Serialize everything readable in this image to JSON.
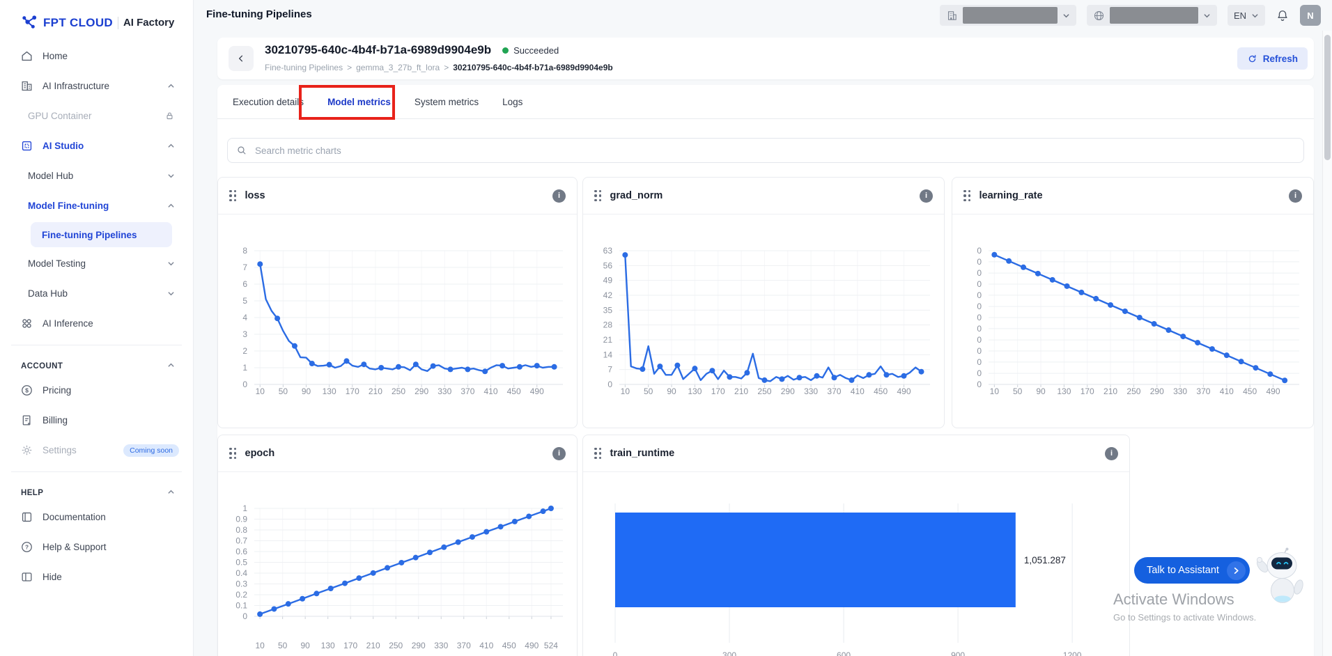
{
  "brand": {
    "name": "FPT CLOUD",
    "product": "AI Factory"
  },
  "header": {
    "title": "Fine-tuning Pipelines",
    "language": "EN",
    "avatar_initial": "N"
  },
  "sidebar": {
    "items": [
      {
        "label": "Home"
      },
      {
        "label": "AI Infrastructure"
      },
      {
        "label": "GPU Container"
      },
      {
        "label": "AI Studio"
      },
      {
        "label": "Model Hub"
      },
      {
        "label": "Model Fine-tuning"
      },
      {
        "label": "Fine-tuning Pipelines"
      },
      {
        "label": "Model Testing"
      },
      {
        "label": "Data Hub"
      },
      {
        "label": "AI Inference"
      }
    ],
    "sections": {
      "account": "ACCOUNT",
      "help": "HELP"
    },
    "account_items": [
      {
        "label": "Pricing"
      },
      {
        "label": "Billing"
      },
      {
        "label": "Settings",
        "badge": "Coming soon"
      }
    ],
    "help_items": [
      {
        "label": "Documentation"
      },
      {
        "label": "Help & Support"
      },
      {
        "label": "Hide"
      }
    ]
  },
  "pipeline": {
    "id": "30210795-640c-4b4f-b71a-6989d9904e9b",
    "status": "Succeeded",
    "breadcrumb": [
      "Fine-tuning Pipelines",
      "gemma_3_27b_ft_lora",
      "30210795-640c-4b4f-b71a-6989d9904e9b"
    ],
    "separator": ">",
    "refresh_label": "Refresh"
  },
  "tabs": {
    "items": [
      {
        "label": "Execution details"
      },
      {
        "label": "Model metrics"
      },
      {
        "label": "System metrics"
      },
      {
        "label": "Logs"
      }
    ],
    "active": "Model metrics"
  },
  "search": {
    "placeholder": "Search metric charts"
  },
  "assistant": {
    "label": "Talk to Assistant"
  },
  "watermark": {
    "line1": "Activate Windows",
    "line2": "Go to Settings to activate Windows."
  },
  "colors": {
    "accent": "#2145d6",
    "chart_line": "#2b6ce4",
    "bar_fill": "#1f6bf5",
    "status_green": "#21a453",
    "annotation_red": "#e8221a"
  },
  "chart_data": [
    {
      "title": "loss",
      "type": "line",
      "x": [
        10,
        20,
        30,
        40,
        50,
        60,
        70,
        80,
        90,
        100,
        110,
        120,
        130,
        140,
        150,
        160,
        170,
        180,
        190,
        200,
        210,
        220,
        230,
        240,
        250,
        260,
        270,
        280,
        290,
        300,
        310,
        320,
        330,
        340,
        350,
        360,
        370,
        380,
        390,
        400,
        410,
        420,
        430,
        440,
        450,
        460,
        470,
        480,
        490,
        500,
        510,
        520
      ],
      "values": [
        7.2,
        5.1,
        4.4,
        3.95,
        3.2,
        2.6,
        2.3,
        1.62,
        1.6,
        1.25,
        1.1,
        1.12,
        1.18,
        1.0,
        1.1,
        1.4,
        1.12,
        1.05,
        1.2,
        0.95,
        0.9,
        1.0,
        0.95,
        0.9,
        1.05,
        1.03,
        0.85,
        1.2,
        0.9,
        0.8,
        1.1,
        1.15,
        0.95,
        0.9,
        0.95,
        1.0,
        0.9,
        0.95,
        0.85,
        0.78,
        1.0,
        1.15,
        1.12,
        0.95,
        1.0,
        1.05,
        1.15,
        1.05,
        1.12,
        1.0,
        1.05,
        1.05
      ],
      "x_ticks": [
        10,
        50,
        90,
        130,
        170,
        210,
        250,
        290,
        330,
        370,
        410,
        450,
        490
      ],
      "y_ticks": [
        0,
        1,
        2,
        3,
        4,
        5,
        6,
        7,
        8
      ],
      "y_labels": [
        "0",
        "1",
        "2",
        "3",
        "4",
        "5",
        "6",
        "7",
        "8"
      ],
      "xlim": [
        0,
        535
      ],
      "ylim": [
        0,
        8
      ],
      "marker_every": 3,
      "grid": true
    },
    {
      "title": "grad_norm",
      "type": "line",
      "x": [
        10,
        20,
        30,
        40,
        50,
        60,
        70,
        80,
        90,
        100,
        110,
        120,
        130,
        140,
        150,
        160,
        170,
        180,
        190,
        200,
        210,
        220,
        230,
        240,
        250,
        260,
        270,
        280,
        290,
        300,
        310,
        320,
        330,
        340,
        350,
        360,
        370,
        380,
        390,
        400,
        410,
        420,
        430,
        440,
        450,
        460,
        470,
        480,
        490,
        500,
        510,
        520
      ],
      "values": [
        61,
        8.5,
        7.5,
        7.2,
        18,
        5,
        8.5,
        4.5,
        4.5,
        9,
        2.5,
        5,
        7.5,
        2,
        5,
        6.5,
        2.5,
        6.5,
        3.5,
        3.5,
        2.8,
        5.5,
        14.5,
        3,
        2,
        1.5,
        3.5,
        2.5,
        4,
        2.2,
        3.2,
        3.5,
        2,
        4,
        3.2,
        8,
        3.2,
        4.5,
        3,
        2,
        4.2,
        3,
        4.5,
        5,
        8.5,
        4.5,
        5,
        3.5,
        4,
        5.5,
        8,
        6
      ],
      "x_ticks": [
        10,
        50,
        90,
        130,
        170,
        210,
        250,
        290,
        330,
        370,
        410,
        450,
        490
      ],
      "y_ticks": [
        0,
        7,
        14,
        21,
        28,
        35,
        42,
        49,
        56,
        63
      ],
      "y_labels": [
        "0",
        "7",
        "14",
        "21",
        "28",
        "35",
        "42",
        "49",
        "56",
        "63"
      ],
      "xlim": [
        0,
        535
      ],
      "ylim": [
        0,
        63
      ],
      "marker_every": 3,
      "grid": true
    },
    {
      "title": "learning_rate",
      "type": "line",
      "x": [
        10,
        35,
        60,
        85,
        110,
        135,
        160,
        185,
        210,
        235,
        260,
        285,
        310,
        335,
        360,
        385,
        410,
        435,
        460,
        485,
        510
      ],
      "values": [
        0.97,
        0.923,
        0.876,
        0.829,
        0.782,
        0.735,
        0.688,
        0.641,
        0.594,
        0.547,
        0.5,
        0.453,
        0.406,
        0.359,
        0.312,
        0.265,
        0.218,
        0.171,
        0.124,
        0.077,
        0.03
      ],
      "x_ticks": [
        10,
        50,
        90,
        130,
        170,
        210,
        250,
        290,
        330,
        370,
        410,
        450,
        490
      ],
      "y_ticks": [
        0,
        0.083,
        0.167,
        0.25,
        0.333,
        0.417,
        0.5,
        0.583,
        0.667,
        0.75,
        0.833,
        0.917,
        1
      ],
      "y_labels": [
        "0",
        "0",
        "0",
        "0",
        "0",
        "0",
        "0",
        "0",
        "0",
        "0",
        "0",
        "0",
        "0"
      ],
      "xlim": [
        0,
        535
      ],
      "ylim": [
        0,
        1
      ],
      "marker_every": 1,
      "grid": true,
      "note": "linear decay; y tick labels all render as 0"
    },
    {
      "title": "epoch",
      "type": "line",
      "x": [
        10,
        35,
        60,
        85,
        110,
        135,
        160,
        185,
        210,
        235,
        260,
        285,
        310,
        335,
        360,
        385,
        410,
        435,
        460,
        485,
        510,
        524
      ],
      "values": [
        0.02,
        0.068,
        0.115,
        0.163,
        0.211,
        0.258,
        0.306,
        0.354,
        0.401,
        0.449,
        0.497,
        0.544,
        0.592,
        0.64,
        0.687,
        0.735,
        0.783,
        0.83,
        0.878,
        0.926,
        0.973,
        1.0
      ],
      "x_ticks": [
        10,
        50,
        90,
        130,
        170,
        210,
        250,
        290,
        330,
        370,
        410,
        450,
        490,
        524
      ],
      "y_ticks": [
        0,
        0.1,
        0.2,
        0.3,
        0.4,
        0.5,
        0.6,
        0.7,
        0.8,
        0.9,
        1
      ],
      "y_labels": [
        "0",
        "0.1",
        "0.2",
        "0.3",
        "0.4",
        "0.5",
        "0.6",
        "0.7",
        "0.8",
        "0.9",
        "1"
      ],
      "xlim": [
        0,
        545
      ],
      "ylim": [
        0,
        1
      ],
      "marker_every": 1,
      "grid": true
    },
    {
      "title": "train_runtime",
      "type": "bar",
      "value": 1051.287,
      "value_label": "1,051.287",
      "x_ticks": [
        0,
        300,
        600,
        900,
        1200
      ],
      "xlim": [
        0,
        1240
      ],
      "grid": true
    }
  ]
}
